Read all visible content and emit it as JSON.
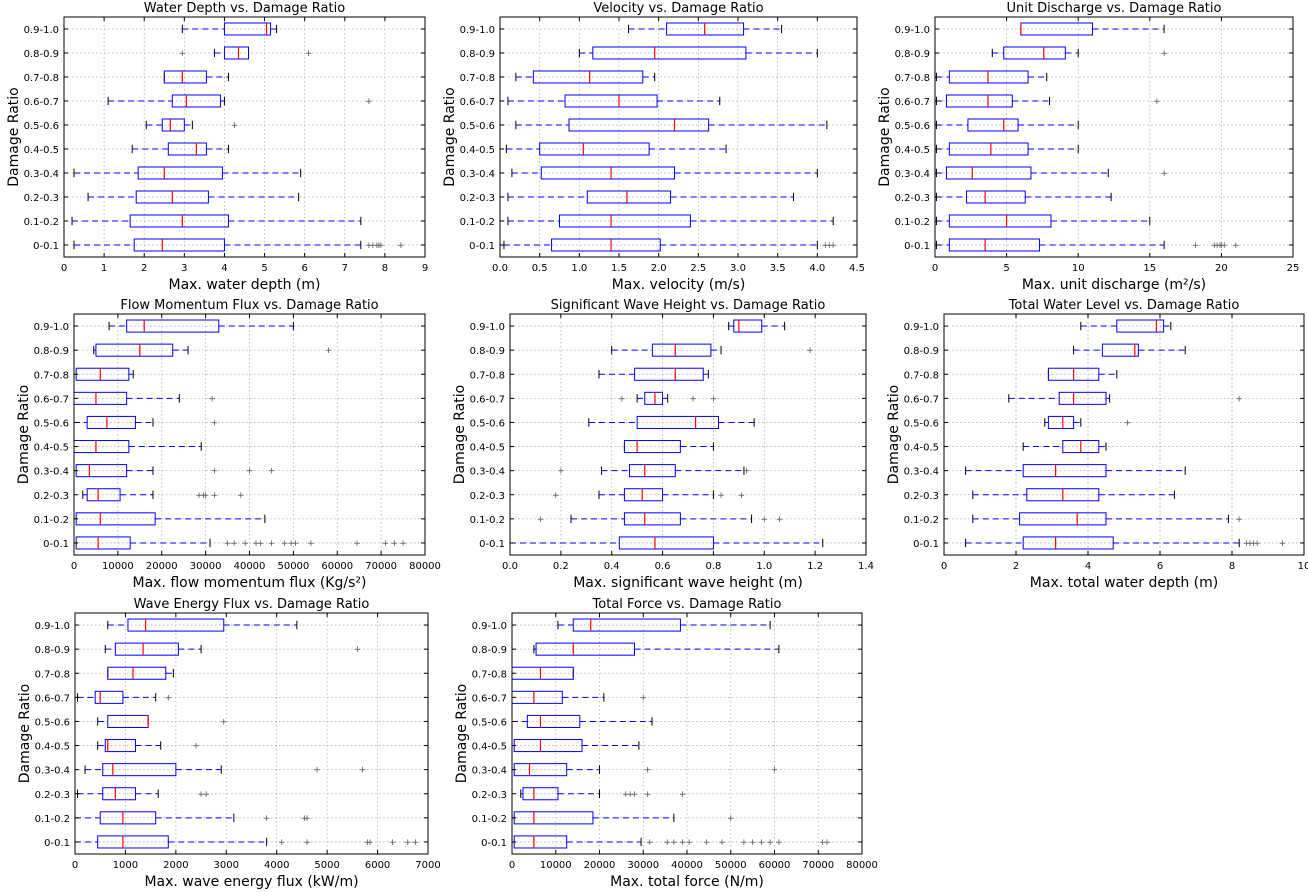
{
  "chart_data": [
    {
      "type": "boxplot",
      "title": "Water Depth vs. Damage Ratio",
      "xlabel": "Max. water depth (m)",
      "ylabel": "Damage Ratio",
      "xlim": [
        0,
        9
      ],
      "xticks": [
        0,
        1,
        2,
        3,
        4,
        5,
        6,
        7,
        8,
        9
      ],
      "categories": [
        "0-0.1",
        "0.1-0.2",
        "0.2-0.3",
        "0.3-0.4",
        "0.4-0.5",
        "0.5-0.6",
        "0.6-0.7",
        "0.7-0.8",
        "0.8-0.9",
        "0.9-1.0"
      ],
      "boxes": [
        {
          "min": 0.25,
          "q1": 1.75,
          "median": 2.45,
          "q3": 4.0,
          "max": 7.4,
          "fliers": [
            7.6,
            7.7,
            7.8,
            7.85,
            7.9,
            8.4
          ]
        },
        {
          "min": 0.2,
          "q1": 1.65,
          "median": 2.95,
          "q3": 4.1,
          "max": 7.4,
          "fliers": []
        },
        {
          "min": 0.6,
          "q1": 1.8,
          "median": 2.7,
          "q3": 3.6,
          "max": 5.85,
          "fliers": []
        },
        {
          "min": 0.25,
          "q1": 1.85,
          "median": 2.5,
          "q3": 3.95,
          "max": 5.9,
          "fliers": []
        },
        {
          "min": 1.7,
          "q1": 2.6,
          "median": 3.3,
          "q3": 3.55,
          "max": 4.1,
          "fliers": []
        },
        {
          "min": 2.05,
          "q1": 2.45,
          "median": 2.65,
          "q3": 3.0,
          "max": 3.2,
          "fliers": [
            4.25
          ]
        },
        {
          "min": 1.1,
          "q1": 2.7,
          "median": 3.05,
          "q3": 3.9,
          "max": 4.0,
          "fliers": [
            7.6
          ]
        },
        {
          "min": 2.5,
          "q1": 2.5,
          "median": 2.95,
          "q3": 3.55,
          "max": 4.1,
          "fliers": []
        },
        {
          "min": 3.75,
          "q1": 4.0,
          "median": 4.35,
          "q3": 4.6,
          "max": 4.6,
          "fliers": [
            2.95,
            6.1
          ]
        },
        {
          "min": 2.95,
          "q1": 4.0,
          "median": 5.05,
          "q3": 5.15,
          "max": 5.3,
          "fliers": []
        }
      ]
    },
    {
      "type": "boxplot",
      "title": "Velocity  vs. Damage Ratio",
      "xlabel": "Max. velocity (m/s)",
      "ylabel": "Damage Ratio",
      "xlim": [
        0,
        4.5
      ],
      "xticks": [
        0.0,
        0.5,
        1.0,
        1.5,
        2.0,
        2.5,
        3.0,
        3.5,
        4.0,
        4.5
      ],
      "categories": [
        "0-0.1",
        "0.1-0.2",
        "0.2-0.3",
        "0.3-0.4",
        "0.4-0.5",
        "0.5-0.6",
        "0.6-0.7",
        "0.7-0.8",
        "0.8-0.9",
        "0.9-1.0"
      ],
      "boxes": [
        {
          "min": 0.05,
          "q1": 0.65,
          "median": 1.4,
          "q3": 2.02,
          "max": 4.0,
          "fliers": [
            4.1,
            4.15,
            4.2
          ]
        },
        {
          "min": 0.1,
          "q1": 0.75,
          "median": 1.4,
          "q3": 2.4,
          "max": 4.2,
          "fliers": []
        },
        {
          "min": 0.1,
          "q1": 1.1,
          "median": 1.6,
          "q3": 2.15,
          "max": 3.7,
          "fliers": []
        },
        {
          "min": 0.15,
          "q1": 0.52,
          "median": 1.4,
          "q3": 2.2,
          "max": 4.0,
          "fliers": []
        },
        {
          "min": 0.08,
          "q1": 0.5,
          "median": 1.05,
          "q3": 1.88,
          "max": 2.85,
          "fliers": []
        },
        {
          "min": 0.2,
          "q1": 0.87,
          "median": 2.2,
          "q3": 2.63,
          "max": 4.12,
          "fliers": []
        },
        {
          "min": 0.1,
          "q1": 0.82,
          "median": 1.5,
          "q3": 1.98,
          "max": 2.77,
          "fliers": []
        },
        {
          "min": 0.2,
          "q1": 0.42,
          "median": 1.13,
          "q3": 1.8,
          "max": 1.95,
          "fliers": []
        },
        {
          "min": 1.0,
          "q1": 1.17,
          "median": 1.95,
          "q3": 3.1,
          "max": 4.0,
          "fliers": []
        },
        {
          "min": 1.62,
          "q1": 2.1,
          "median": 2.58,
          "q3": 3.07,
          "max": 3.55,
          "fliers": []
        }
      ]
    },
    {
      "type": "boxplot",
      "title": "Unit Discharge vs. Damage Ratio",
      "xlabel": "Max. unit discharge (m²/s)",
      "ylabel": "Damage Ratio",
      "xlim": [
        0,
        25
      ],
      "xticks": [
        0,
        5,
        10,
        15,
        20,
        25
      ],
      "categories": [
        "0-0.1",
        "0.1-0.2",
        "0.2-0.3",
        "0.3-0.4",
        "0.4-0.5",
        "0.5-0.6",
        "0.6-0.7",
        "0.7-0.8",
        "0.8-0.9",
        "0.9-1.0"
      ],
      "boxes": [
        {
          "min": 0.1,
          "q1": 1.0,
          "median": 3.5,
          "q3": 7.3,
          "max": 16.0,
          "fliers": [
            18.2,
            19.5,
            19.7,
            19.9,
            20.0,
            20.2,
            21.0
          ]
        },
        {
          "min": 0.1,
          "q1": 1.0,
          "median": 5.0,
          "q3": 8.1,
          "max": 15.0,
          "fliers": []
        },
        {
          "min": 0.1,
          "q1": 2.2,
          "median": 3.5,
          "q3": 6.3,
          "max": 12.3,
          "fliers": []
        },
        {
          "min": 0.1,
          "q1": 0.8,
          "median": 2.6,
          "q3": 6.7,
          "max": 12.1,
          "fliers": [
            16.0
          ]
        },
        {
          "min": 0.1,
          "q1": 1.0,
          "median": 3.9,
          "q3": 6.5,
          "max": 10.0,
          "fliers": []
        },
        {
          "min": 0.1,
          "q1": 2.3,
          "median": 4.8,
          "q3": 5.8,
          "max": 10.0,
          "fliers": []
        },
        {
          "min": 0.1,
          "q1": 0.8,
          "median": 3.7,
          "q3": 5.4,
          "max": 8.0,
          "fliers": [
            15.5
          ]
        },
        {
          "min": 0.1,
          "q1": 1.0,
          "median": 3.7,
          "q3": 6.5,
          "max": 7.8,
          "fliers": []
        },
        {
          "min": 4.0,
          "q1": 4.8,
          "median": 7.6,
          "q3": 9.1,
          "max": 10.0,
          "fliers": [
            16.0
          ]
        },
        {
          "min": 6.0,
          "q1": 6.0,
          "median": 6.0,
          "q3": 11.0,
          "max": 16.0,
          "fliers": []
        }
      ]
    },
    {
      "type": "boxplot",
      "title": "Flow Momentum Flux vs. Damage Ratio",
      "xlabel": "Max. flow momentum flux (Kg/s²)",
      "ylabel": "Damage Ratio",
      "xlim": [
        0,
        80000
      ],
      "xticks": [
        0,
        10000,
        20000,
        30000,
        40000,
        50000,
        60000,
        70000,
        80000
      ],
      "categories": [
        "0-0.1",
        "0.1-0.2",
        "0.2-0.3",
        "0.3-0.4",
        "0.4-0.5",
        "0.5-0.6",
        "0.6-0.7",
        "0.7-0.8",
        "0.8-0.9",
        "0.9-1.0"
      ],
      "boxes": [
        {
          "min": 0,
          "q1": 500,
          "median": 5500,
          "q3": 12800,
          "max": 31000,
          "fliers": [
            35000,
            36500,
            39000,
            41500,
            42500,
            45000,
            48000,
            49500,
            50500,
            54000,
            64500,
            71000,
            73000,
            75000
          ]
        },
        {
          "min": 0,
          "q1": 500,
          "median": 6000,
          "q3": 18500,
          "max": 43500,
          "fliers": []
        },
        {
          "min": 2000,
          "q1": 3000,
          "median": 5500,
          "q3": 10500,
          "max": 18000,
          "fliers": [
            28500,
            29500,
            30000,
            32000,
            38000
          ]
        },
        {
          "min": 0,
          "q1": 500,
          "median": 3500,
          "q3": 12000,
          "max": 18000,
          "fliers": [
            32000,
            40000,
            45000
          ]
        },
        {
          "min": 0,
          "q1": 0,
          "median": 5000,
          "q3": 12500,
          "max": 29000,
          "fliers": []
        },
        {
          "min": 0,
          "q1": 3000,
          "median": 7500,
          "q3": 14000,
          "max": 18000,
          "fliers": [
            32000
          ]
        },
        {
          "min": 0,
          "q1": 0,
          "median": 5000,
          "q3": 12000,
          "max": 24000,
          "fliers": [
            31500
          ]
        },
        {
          "min": 0,
          "q1": 500,
          "median": 6000,
          "q3": 12500,
          "max": 13500,
          "fliers": []
        },
        {
          "min": 4500,
          "q1": 5000,
          "median": 15000,
          "q3": 22500,
          "max": 26000,
          "fliers": [
            58000
          ]
        },
        {
          "min": 8000,
          "q1": 12000,
          "median": 16000,
          "q3": 33000,
          "max": 50000,
          "fliers": []
        }
      ]
    },
    {
      "type": "boxplot",
      "title": "Significant Wave Height vs. Damage Ratio",
      "xlabel": "Max. significant wave height (m)",
      "ylabel": "Damage Ratio",
      "xlim": [
        0,
        1.4
      ],
      "xticks": [
        0.0,
        0.2,
        0.4,
        0.6,
        0.8,
        1.0,
        1.2,
        1.4
      ],
      "categories": [
        "0-0.1",
        "0.1-0.2",
        "0.2-0.3",
        "0.3-0.4",
        "0.4-0.5",
        "0.5-0.6",
        "0.6-0.7",
        "0.7-0.8",
        "0.8-0.9",
        "0.9-1.0"
      ],
      "boxes": [
        {
          "min": 0.0,
          "q1": 0.43,
          "median": 0.57,
          "q3": 0.8,
          "max": 1.23,
          "fliers": []
        },
        {
          "min": 0.24,
          "q1": 0.45,
          "median": 0.53,
          "q3": 0.67,
          "max": 0.95,
          "fliers": [
            0.12,
            1.0,
            1.06
          ]
        },
        {
          "min": 0.35,
          "q1": 0.45,
          "median": 0.52,
          "q3": 0.6,
          "max": 0.8,
          "fliers": [
            0.18,
            0.83,
            0.91
          ]
        },
        {
          "min": 0.36,
          "q1": 0.47,
          "median": 0.53,
          "q3": 0.65,
          "max": 0.92,
          "fliers": [
            0.2,
            0.93
          ]
        },
        {
          "min": 0.45,
          "q1": 0.45,
          "median": 0.5,
          "q3": 0.67,
          "max": 0.8,
          "fliers": []
        },
        {
          "min": 0.31,
          "q1": 0.5,
          "median": 0.73,
          "q3": 0.82,
          "max": 0.96,
          "fliers": []
        },
        {
          "min": 0.5,
          "q1": 0.53,
          "median": 0.57,
          "q3": 0.6,
          "max": 0.62,
          "fliers": [
            0.44,
            0.72,
            0.8
          ]
        },
        {
          "min": 0.35,
          "q1": 0.49,
          "median": 0.65,
          "q3": 0.76,
          "max": 0.78,
          "fliers": []
        },
        {
          "min": 0.4,
          "q1": 0.56,
          "median": 0.65,
          "q3": 0.79,
          "max": 0.83,
          "fliers": [
            1.18
          ]
        },
        {
          "min": 0.86,
          "q1": 0.88,
          "median": 0.9,
          "q3": 0.99,
          "max": 1.08,
          "fliers": []
        }
      ]
    },
    {
      "type": "boxplot",
      "title": "Total Water Level vs. Damage Ratio",
      "xlabel": "Max. total water depth (m)",
      "ylabel": "Damage Ratio",
      "xlim": [
        0,
        10
      ],
      "xticks": [
        0,
        2,
        4,
        6,
        8,
        10
      ],
      "categories": [
        "0-0.1",
        "0.1-0.2",
        "0.2-0.3",
        "0.3-0.4",
        "0.4-0.5",
        "0.5-0.6",
        "0.6-0.7",
        "0.7-0.8",
        "0.8-0.9",
        "0.9-1.0"
      ],
      "boxes": [
        {
          "min": 0.6,
          "q1": 2.2,
          "median": 3.1,
          "q3": 4.7,
          "max": 8.2,
          "fliers": [
            8.4,
            8.5,
            8.6,
            8.7,
            9.4
          ]
        },
        {
          "min": 0.8,
          "q1": 2.1,
          "median": 3.7,
          "q3": 4.5,
          "max": 7.9,
          "fliers": [
            8.2
          ]
        },
        {
          "min": 0.8,
          "q1": 2.3,
          "median": 3.3,
          "q3": 4.3,
          "max": 6.4,
          "fliers": []
        },
        {
          "min": 0.6,
          "q1": 2.2,
          "median": 3.1,
          "q3": 4.5,
          "max": 6.7,
          "fliers": []
        },
        {
          "min": 2.2,
          "q1": 3.3,
          "median": 3.8,
          "q3": 4.3,
          "max": 4.5,
          "fliers": []
        },
        {
          "min": 2.8,
          "q1": 2.9,
          "median": 3.3,
          "q3": 3.6,
          "max": 3.8,
          "fliers": [
            5.1
          ]
        },
        {
          "min": 1.8,
          "q1": 3.2,
          "median": 3.6,
          "q3": 4.5,
          "max": 4.6,
          "fliers": [
            8.2
          ]
        },
        {
          "min": 2.9,
          "q1": 2.9,
          "median": 3.6,
          "q3": 4.3,
          "max": 4.8,
          "fliers": []
        },
        {
          "min": 3.6,
          "q1": 4.4,
          "median": 5.3,
          "q3": 5.4,
          "max": 6.7,
          "fliers": []
        },
        {
          "min": 3.8,
          "q1": 4.8,
          "median": 5.9,
          "q3": 6.1,
          "max": 6.3,
          "fliers": []
        }
      ]
    },
    {
      "type": "boxplot",
      "title": "Wave Energy Flux vs. Damage Ratio",
      "xlabel": "Max. wave energy flux (kW/m)",
      "ylabel": "Damage Ratio",
      "xlim": [
        0,
        7000
      ],
      "xticks": [
        0,
        1000,
        2000,
        3000,
        4000,
        5000,
        6000,
        7000
      ],
      "categories": [
        "0-0.1",
        "0.1-0.2",
        "0.2-0.3",
        "0.3-0.4",
        "0.4-0.5",
        "0.5-0.6",
        "0.6-0.7",
        "0.7-0.8",
        "0.8-0.9",
        "0.9-1.0"
      ],
      "boxes": [
        {
          "min": 0,
          "q1": 450,
          "median": 950,
          "q3": 1850,
          "max": 3800,
          "fliers": [
            4100,
            4600,
            5800,
            5850,
            6300,
            6600,
            6750
          ]
        },
        {
          "min": 0,
          "q1": 500,
          "median": 950,
          "q3": 1600,
          "max": 3150,
          "fliers": [
            3800,
            4550,
            4600
          ]
        },
        {
          "min": 50,
          "q1": 550,
          "median": 800,
          "q3": 1200,
          "max": 1650,
          "fliers": [
            2500,
            2600
          ]
        },
        {
          "min": 200,
          "q1": 550,
          "median": 750,
          "q3": 2000,
          "max": 2900,
          "fliers": [
            4800,
            5700
          ]
        },
        {
          "min": 450,
          "q1": 600,
          "median": 650,
          "q3": 1200,
          "max": 1700,
          "fliers": [
            2400
          ]
        },
        {
          "min": 450,
          "q1": 650,
          "median": 1450,
          "q3": 1450,
          "max": 1450,
          "fliers": [
            2950
          ]
        },
        {
          "min": 50,
          "q1": 400,
          "median": 500,
          "q3": 950,
          "max": 1600,
          "fliers": [
            1850
          ]
        },
        {
          "min": 650,
          "q1": 650,
          "median": 1150,
          "q3": 1800,
          "max": 1950,
          "fliers": []
        },
        {
          "min": 600,
          "q1": 800,
          "median": 1350,
          "q3": 2050,
          "max": 2500,
          "fliers": [
            5600
          ]
        },
        {
          "min": 650,
          "q1": 1050,
          "median": 1400,
          "q3": 2950,
          "max": 4400,
          "fliers": []
        }
      ]
    },
    {
      "type": "boxplot",
      "title": "Total Force vs. Damage Ratio",
      "xlabel": "Max. total force (N/m)",
      "ylabel": "Damage Ratio",
      "xlim": [
        0,
        80000
      ],
      "xticks": [
        0,
        10000,
        20000,
        30000,
        40000,
        50000,
        60000,
        70000,
        80000
      ],
      "categories": [
        "0-0.1",
        "0.1-0.2",
        "0.2-0.3",
        "0.3-0.4",
        "0.4-0.5",
        "0.5-0.6",
        "0.6-0.7",
        "0.7-0.8",
        "0.8-0.9",
        "0.9-1.0"
      ],
      "boxes": [
        {
          "min": 0,
          "q1": 500,
          "median": 5000,
          "q3": 12500,
          "max": 29500,
          "fliers": [
            31500,
            35500,
            37000,
            39000,
            40500,
            44500,
            48000,
            53000,
            55000,
            57000,
            59000,
            61000,
            71000,
            72000
          ]
        },
        {
          "min": 0,
          "q1": 500,
          "median": 5000,
          "q3": 18500,
          "max": 37000,
          "fliers": [
            50000
          ]
        },
        {
          "min": 2000,
          "q1": 2500,
          "median": 5000,
          "q3": 10500,
          "max": 20000,
          "fliers": [
            26000,
            27000,
            28000,
            31000,
            39000
          ]
        },
        {
          "min": 0,
          "q1": 500,
          "median": 4000,
          "q3": 12500,
          "max": 20000,
          "fliers": [
            31000,
            60000
          ]
        },
        {
          "min": 0,
          "q1": 500,
          "median": 6500,
          "q3": 16000,
          "max": 29000,
          "fliers": []
        },
        {
          "min": 0,
          "q1": 3500,
          "median": 6500,
          "q3": 15500,
          "max": 32000,
          "fliers": []
        },
        {
          "min": 0,
          "q1": 0,
          "median": 5000,
          "q3": 11500,
          "max": 21000,
          "fliers": [
            30000
          ]
        },
        {
          "min": 0,
          "q1": 0,
          "median": 6500,
          "q3": 14000,
          "max": 14000,
          "fliers": []
        },
        {
          "min": 5000,
          "q1": 5500,
          "median": 14000,
          "q3": 28000,
          "max": 61000,
          "fliers": []
        },
        {
          "min": 10500,
          "q1": 14000,
          "median": 18000,
          "q3": 38500,
          "max": 59000,
          "fliers": []
        }
      ]
    }
  ]
}
